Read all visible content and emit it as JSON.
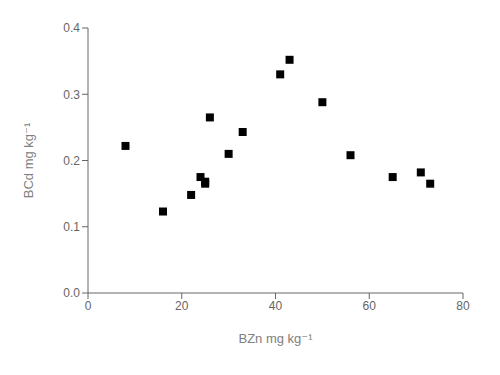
{
  "chart_data": {
    "type": "scatter",
    "x": [
      8,
      16,
      22,
      24,
      25,
      25,
      26,
      30,
      33,
      41,
      43,
      50,
      56,
      65,
      71,
      73
    ],
    "values": [
      0.222,
      0.123,
      0.148,
      0.175,
      0.165,
      0.168,
      0.265,
      0.21,
      0.243,
      0.33,
      0.352,
      0.288,
      0.208,
      0.175,
      0.182,
      0.165
    ],
    "xlabel": "BZn mg kg⁻¹",
    "ylabel": "BCd mg kg⁻¹",
    "xlim": [
      0,
      80
    ],
    "ylim": [
      0.0,
      0.4
    ],
    "xticks": [
      0,
      20,
      40,
      60,
      80
    ],
    "yticks": [
      {
        "value": 0.0,
        "label": "0.0"
      },
      0.1,
      0.2,
      0.3,
      0.4
    ],
    "marker": "square",
    "color": "black",
    "grid": false
  }
}
